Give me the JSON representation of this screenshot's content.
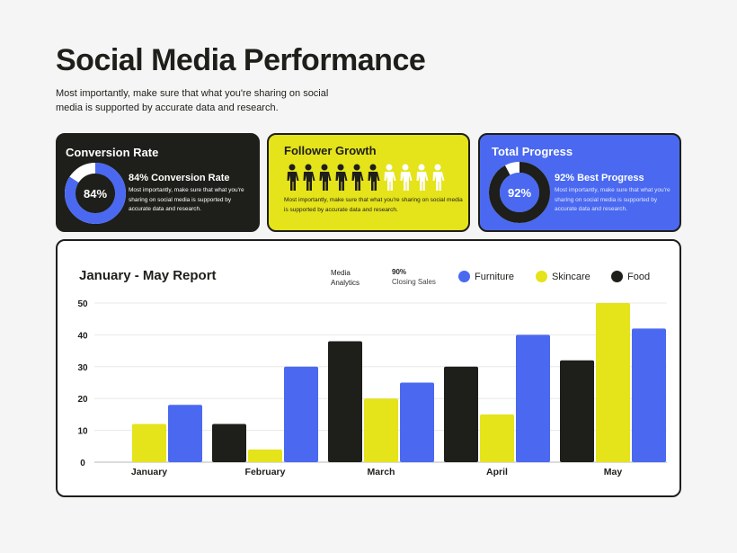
{
  "header": {
    "title": "Social Media Performance",
    "subtitle": "Most importantly, make sure that what you're sharing on social media is supported by accurate data and research."
  },
  "colors": {
    "dark": "#1e1e1a",
    "yellow": "#e5e31a",
    "blue": "#4a69f0",
    "white": "#ffffff"
  },
  "cards": {
    "conversion": {
      "title": "Conversion Rate",
      "percent": 84,
      "donut_label": "84%",
      "heading": "84% Conversion Rate",
      "text": "Most importantly, make sure that what you're sharing on social media is supported by accurate data and research."
    },
    "follower": {
      "title": "Follower Growth",
      "filled": 6,
      "total": 10,
      "icon": "person-icon",
      "text": "Most importantly, make sure that what you're sharing on social media is supported by accurate data and research."
    },
    "progress": {
      "title": "Total Progress",
      "percent": 92,
      "donut_label": "92%",
      "heading": "92% Best Progress",
      "text": "Most importantly, make sure that what you're sharing on social media is supported by accurate data and research."
    }
  },
  "report": {
    "media_label": "Media Analytics",
    "stat_value": "90%",
    "stat_label": "Closing Sales"
  },
  "chart_data": {
    "type": "bar",
    "title": "January - May Report",
    "categories": [
      "January",
      "February",
      "March",
      "April",
      "May"
    ],
    "series": [
      {
        "name": "Food",
        "color": "#1e1e1a",
        "values": [
          0,
          12,
          38,
          30,
          32
        ]
      },
      {
        "name": "Skincare",
        "color": "#e5e31a",
        "values": [
          12,
          4,
          20,
          15,
          50
        ]
      },
      {
        "name": "Furniture",
        "color": "#4a69f0",
        "values": [
          18,
          30,
          25,
          40,
          42
        ]
      }
    ],
    "legend_order": [
      "Furniture",
      "Skincare",
      "Food"
    ],
    "ylim": [
      0,
      50
    ],
    "yticks": [
      0,
      10,
      20,
      30,
      40,
      50
    ],
    "grid": true,
    "legend": "top-right"
  }
}
